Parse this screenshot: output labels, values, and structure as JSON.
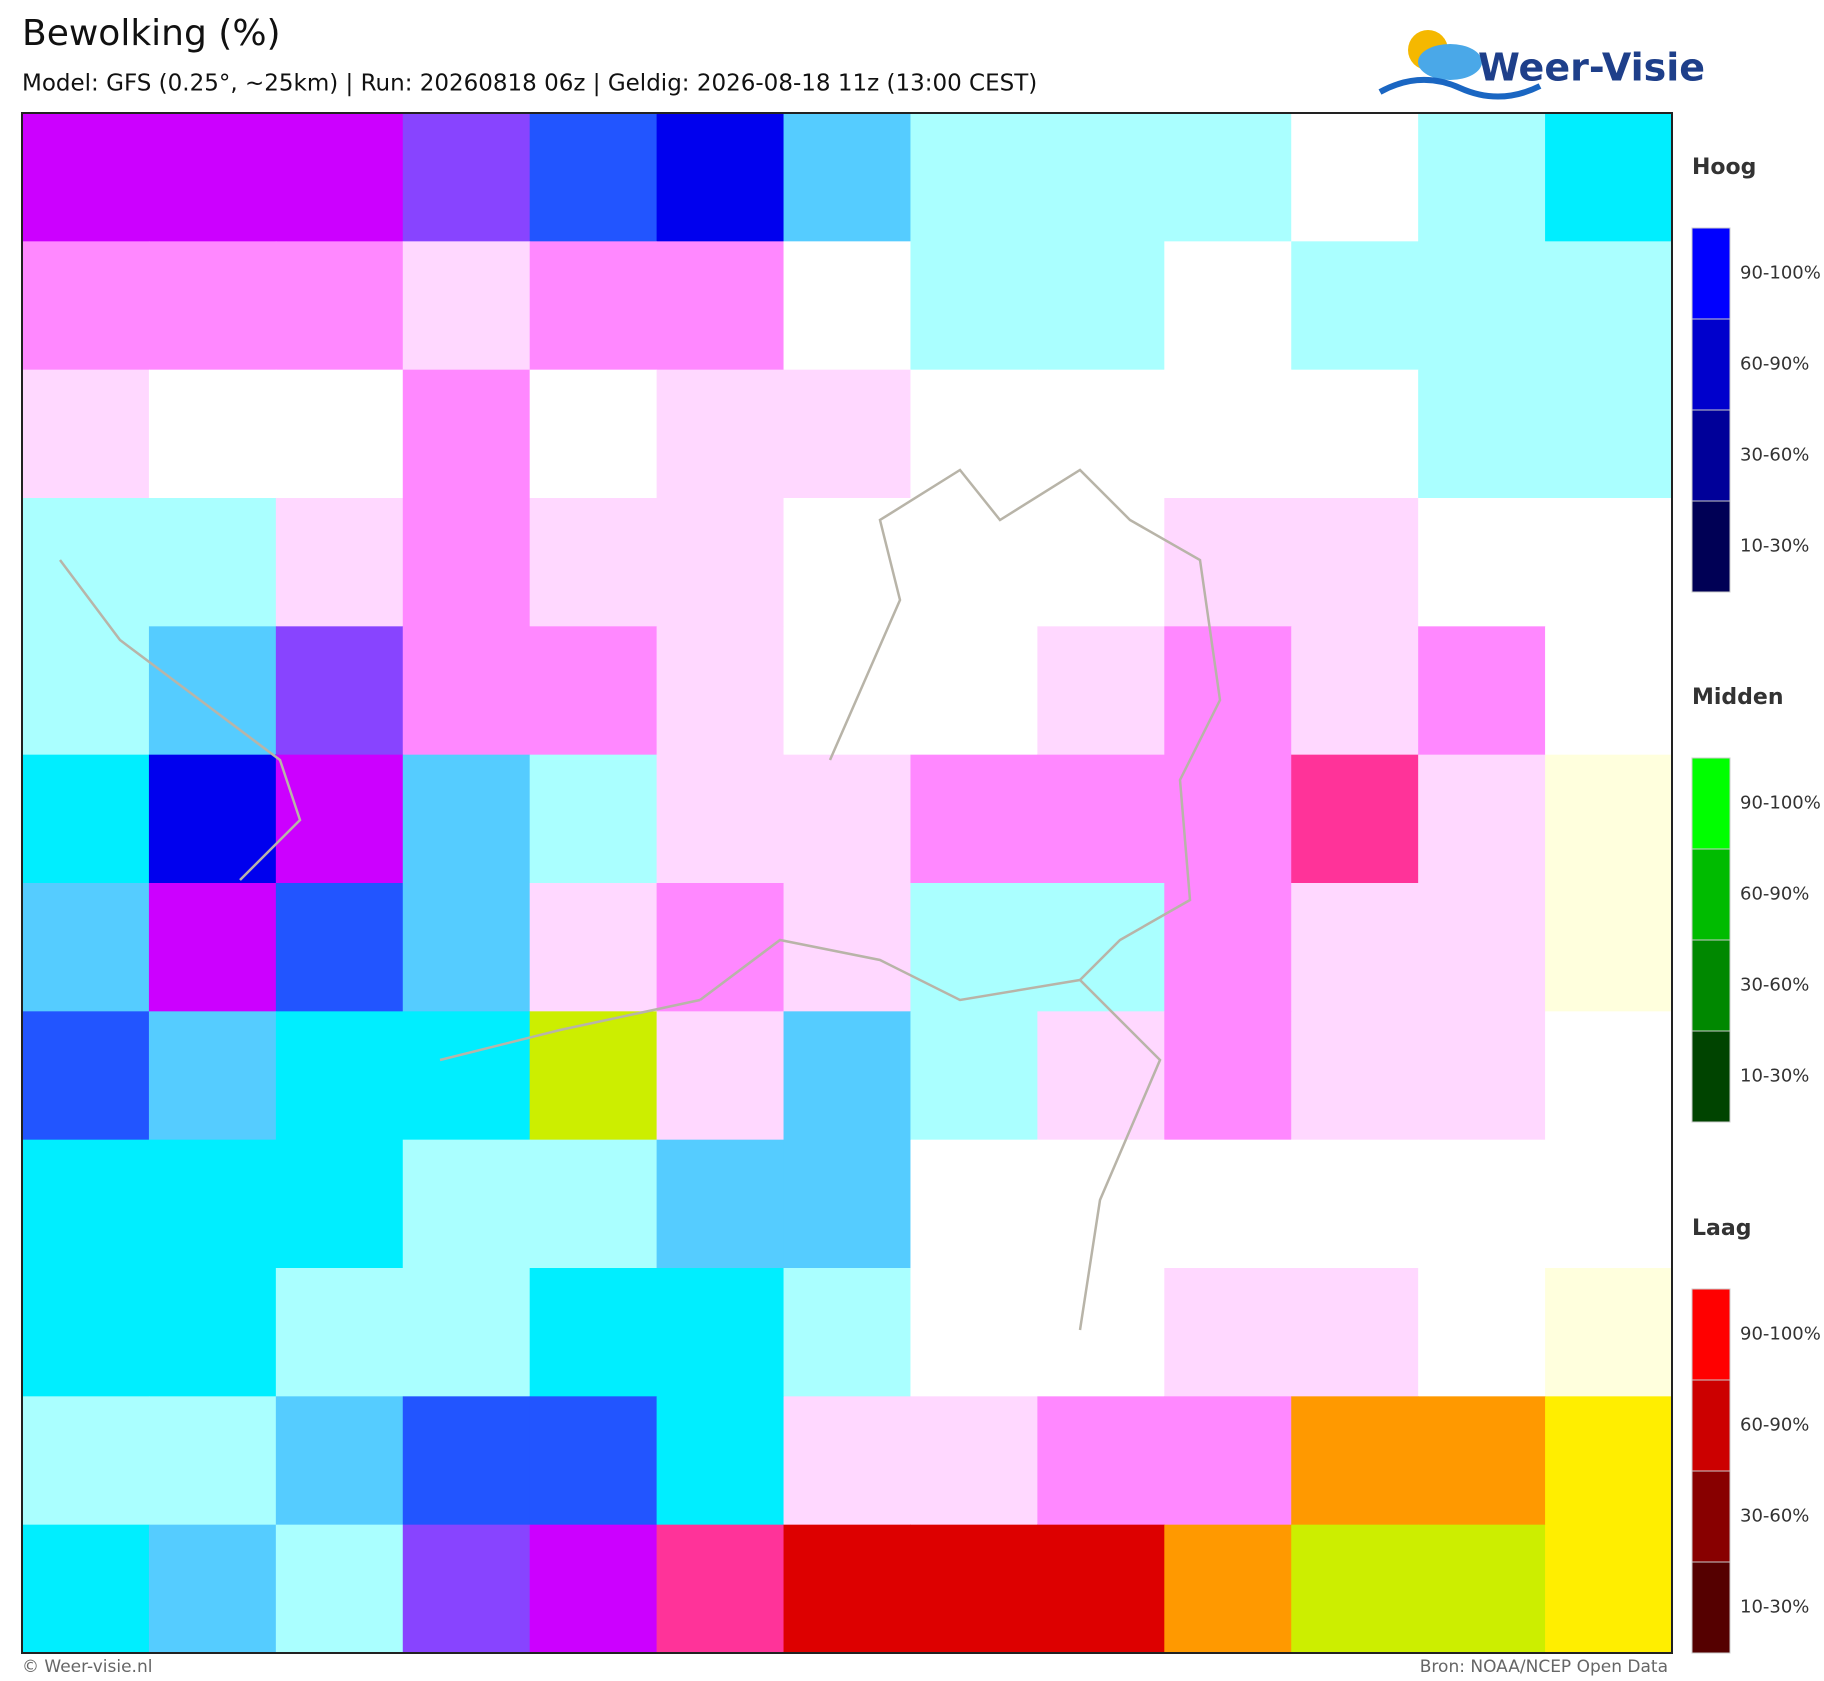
{
  "header": {
    "title": "Bewolking (%)",
    "subtitle": "Model: GFS (0.25°, ~25km)  |  Run: 20260818 06z  |  Geldig: 2026-08-18 11z (13:00 CEST)",
    "logo": "Weer-Visie"
  },
  "legend": {
    "groups": [
      {
        "name": "Hoog",
        "items": [
          "90-100%",
          "60-90%",
          "30-60%",
          "10-30%"
        ]
      },
      {
        "name": "Midden",
        "items": [
          "90-100%",
          "60-90%",
          "30-60%",
          "10-30%"
        ]
      },
      {
        "name": "Laag",
        "items": [
          "90-100%",
          "60-90%",
          "30-60%",
          "10-30%"
        ]
      }
    ]
  },
  "footer": {
    "left": "© Weer-visie.nl",
    "right": "Bron: NOAA/NCEP Open Data"
  }
}
